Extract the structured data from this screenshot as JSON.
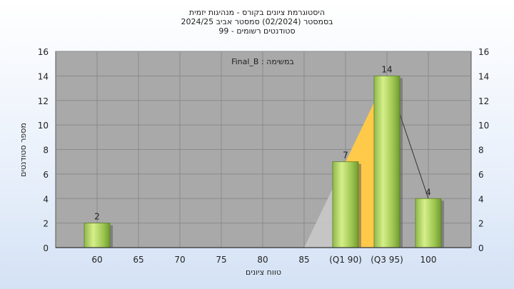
{
  "chart_data": {
    "type": "bar",
    "title_lines": [
      "היסטוגרמת ציונים בקורס - מנהיגות יזמית",
      "בסמסטר  (02/2024)  סמסטר אביב 2024/25",
      "סטודנטים רשומים - 99"
    ],
    "xlabel": "טווח ציונים",
    "ylabel": "מספר סטודנטים",
    "annotation": "Final_B : במשימה",
    "categories": [
      "60",
      "65",
      "70",
      "75",
      "80",
      "85",
      "(Q1 90)",
      "(Q3 95)",
      "100"
    ],
    "values": [
      2,
      0,
      0,
      0,
      0,
      0,
      7,
      14,
      4
    ],
    "ylim": [
      0,
      16
    ],
    "yticks": [
      0,
      2,
      4,
      6,
      8,
      10,
      12,
      14,
      16
    ],
    "grid": true,
    "quartile_band": {
      "from_category": "(Q1 90)",
      "to_category": "(Q3 95)"
    },
    "colors": {
      "plot_bg": "#a9a9a9",
      "bar_light": "#d6ef8a",
      "bar_dark": "#6f9a2e",
      "quartile_band": "#ffc94a",
      "gray_band": "#c8c8c8",
      "grid": "#8a8a8a"
    }
  }
}
